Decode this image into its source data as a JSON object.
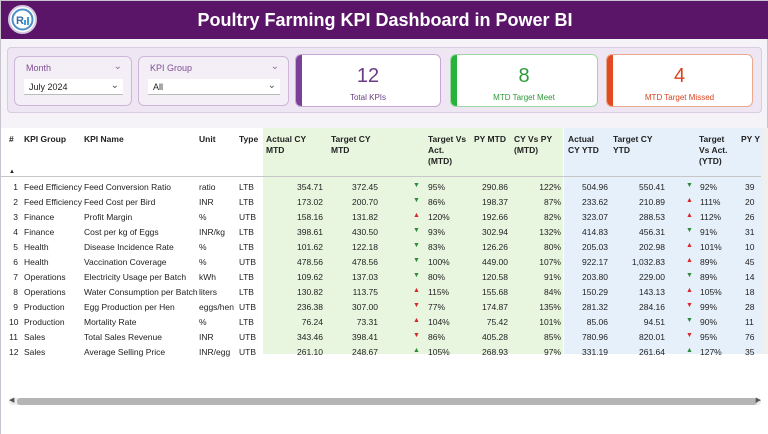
{
  "header": {
    "title": "Poultry Farming KPI Dashboard in Power BI"
  },
  "filters": {
    "month": {
      "label": "Month",
      "value": "July 2024"
    },
    "kpi_group": {
      "label": "KPI Group",
      "value": "All"
    }
  },
  "cards": [
    {
      "value": "12",
      "label": "Total KPIs",
      "accent": "#7a3f96",
      "color": "#6b3c86"
    },
    {
      "value": "8",
      "label": "MTD Target Meet",
      "accent": "#26b23b",
      "color": "#2e9a3a"
    },
    {
      "value": "4",
      "label": "MTD Target Missed",
      "accent": "#e24a22",
      "color": "#d8431e"
    }
  ],
  "table": {
    "headers": {
      "num": "#",
      "group": "KPI Group",
      "name": "KPI Name",
      "unit": "Unit",
      "type": "Type",
      "actual_mtd": "Actual CY\nMTD",
      "target_mtd": "Target CY\nMTD",
      "tva_mtd": "Target Vs\nAct.\n(MTD)",
      "py_mtd": "PY MTD",
      "cvp_mtd": "CY Vs PY\n(MTD)",
      "actual_ytd": "Actual\nCY YTD",
      "target_ytd": "Target CY\nYTD",
      "tva_ytd": "Target\nVs Act.\n(YTD)",
      "py_ytd": "PY Y"
    },
    "colors": {
      "up": "#d9262a",
      "down": "#2e8b3c",
      "mtd_band": "#e8f6df",
      "ytd_band": "#e6f0fa"
    },
    "rows": [
      {
        "num": "1",
        "group": "Feed Efficiency",
        "name": "Feed Conversion Ratio",
        "unit": "ratio",
        "type": "LTB",
        "actual_mtd": "354.71",
        "target_mtd": "372.45",
        "tva_mtd_icon": "down",
        "tva_mtd": "95%",
        "py_mtd": "290.86",
        "cvp_mtd": "122%",
        "actual_ytd": "504.96",
        "target_ytd": "550.41",
        "tva_ytd_icon": "down",
        "tva_ytd": "92%",
        "py_ytd": "39"
      },
      {
        "num": "2",
        "group": "Feed Efficiency",
        "name": "Feed Cost per Bird",
        "unit": "INR",
        "type": "LTB",
        "actual_mtd": "173.02",
        "target_mtd": "200.70",
        "tva_mtd_icon": "down",
        "tva_mtd": "86%",
        "py_mtd": "198.37",
        "cvp_mtd": "87%",
        "actual_ytd": "233.62",
        "target_ytd": "210.89",
        "tva_ytd_icon": "up",
        "tva_ytd": "111%",
        "py_ytd": "20"
      },
      {
        "num": "3",
        "group": "Finance",
        "name": "Profit Margin",
        "unit": "%",
        "type": "UTB",
        "actual_mtd": "158.16",
        "target_mtd": "131.82",
        "tva_mtd_icon": "up",
        "tva_mtd": "120%",
        "py_mtd": "192.66",
        "cvp_mtd": "82%",
        "actual_ytd": "323.07",
        "target_ytd": "288.53",
        "tva_ytd_icon": "up",
        "tva_ytd": "112%",
        "py_ytd": "26"
      },
      {
        "num": "4",
        "group": "Finance",
        "name": "Cost per kg of Eggs",
        "unit": "INR/kg",
        "type": "LTB",
        "actual_mtd": "398.61",
        "target_mtd": "430.50",
        "tva_mtd_icon": "down",
        "tva_mtd": "93%",
        "py_mtd": "302.94",
        "cvp_mtd": "132%",
        "actual_ytd": "414.83",
        "target_ytd": "456.31",
        "tva_ytd_icon": "down",
        "tva_ytd": "91%",
        "py_ytd": "31"
      },
      {
        "num": "5",
        "group": "Health",
        "name": "Disease Incidence Rate",
        "unit": "%",
        "type": "LTB",
        "actual_mtd": "101.62",
        "target_mtd": "122.18",
        "tva_mtd_icon": "down",
        "tva_mtd": "83%",
        "py_mtd": "126.26",
        "cvp_mtd": "80%",
        "actual_ytd": "205.03",
        "target_ytd": "202.98",
        "tva_ytd_icon": "up",
        "tva_ytd": "101%",
        "py_ytd": "10"
      },
      {
        "num": "6",
        "group": "Health",
        "name": "Vaccination Coverage",
        "unit": "%",
        "type": "UTB",
        "actual_mtd": "478.56",
        "target_mtd": "478.56",
        "tva_mtd_icon": "down",
        "tva_mtd": "100%",
        "py_mtd": "449.00",
        "cvp_mtd": "107%",
        "actual_ytd": "922.17",
        "target_ytd": "1,032.83",
        "tva_ytd_icon": "up-red",
        "tva_ytd": "89%",
        "py_ytd": "45"
      },
      {
        "num": "7",
        "group": "Operations",
        "name": "Electricity Usage per Batch",
        "unit": "kWh",
        "type": "LTB",
        "actual_mtd": "109.62",
        "target_mtd": "137.03",
        "tva_mtd_icon": "down",
        "tva_mtd": "80%",
        "py_mtd": "120.58",
        "cvp_mtd": "91%",
        "actual_ytd": "203.80",
        "target_ytd": "229.00",
        "tva_ytd_icon": "down",
        "tva_ytd": "89%",
        "py_ytd": "14"
      },
      {
        "num": "8",
        "group": "Operations",
        "name": "Water Consumption per Batch",
        "unit": "liters",
        "type": "LTB",
        "actual_mtd": "130.82",
        "target_mtd": "113.75",
        "tva_mtd_icon": "up",
        "tva_mtd": "115%",
        "py_mtd": "155.68",
        "cvp_mtd": "84%",
        "actual_ytd": "150.29",
        "target_ytd": "143.13",
        "tva_ytd_icon": "up",
        "tva_ytd": "105%",
        "py_ytd": "18"
      },
      {
        "num": "9",
        "group": "Production",
        "name": "Egg Production per Hen",
        "unit": "eggs/hen",
        "type": "UTB",
        "actual_mtd": "236.38",
        "target_mtd": "307.00",
        "tva_mtd_icon": "down-red",
        "tva_mtd": "77%",
        "py_mtd": "174.87",
        "cvp_mtd": "135%",
        "actual_ytd": "281.32",
        "target_ytd": "284.16",
        "tva_ytd_icon": "down-red",
        "tva_ytd": "99%",
        "py_ytd": "28"
      },
      {
        "num": "10",
        "group": "Production",
        "name": "Mortality Rate",
        "unit": "%",
        "type": "LTB",
        "actual_mtd": "76.24",
        "target_mtd": "73.31",
        "tva_mtd_icon": "up",
        "tva_mtd": "104%",
        "py_mtd": "75.42",
        "cvp_mtd": "101%",
        "actual_ytd": "85.06",
        "target_ytd": "94.51",
        "tva_ytd_icon": "down",
        "tva_ytd": "90%",
        "py_ytd": "11"
      },
      {
        "num": "11",
        "group": "Sales",
        "name": "Total Sales Revenue",
        "unit": "INR",
        "type": "UTB",
        "actual_mtd": "343.46",
        "target_mtd": "398.41",
        "tva_mtd_icon": "down-red",
        "tva_mtd": "86%",
        "py_mtd": "405.28",
        "cvp_mtd": "85%",
        "actual_ytd": "780.96",
        "target_ytd": "820.01",
        "tva_ytd_icon": "down-red",
        "tva_ytd": "95%",
        "py_ytd": "76"
      },
      {
        "num": "12",
        "group": "Sales",
        "name": "Average Selling Price",
        "unit": "INR/egg",
        "type": "UTB",
        "actual_mtd": "261.10",
        "target_mtd": "248.67",
        "tva_mtd_icon": "up-green",
        "tva_mtd": "105%",
        "py_mtd": "268.93",
        "cvp_mtd": "97%",
        "actual_ytd": "331.19",
        "target_ytd": "261.64",
        "tva_ytd_icon": "up-green",
        "tva_ytd": "127%",
        "py_ytd": "35"
      }
    ]
  }
}
